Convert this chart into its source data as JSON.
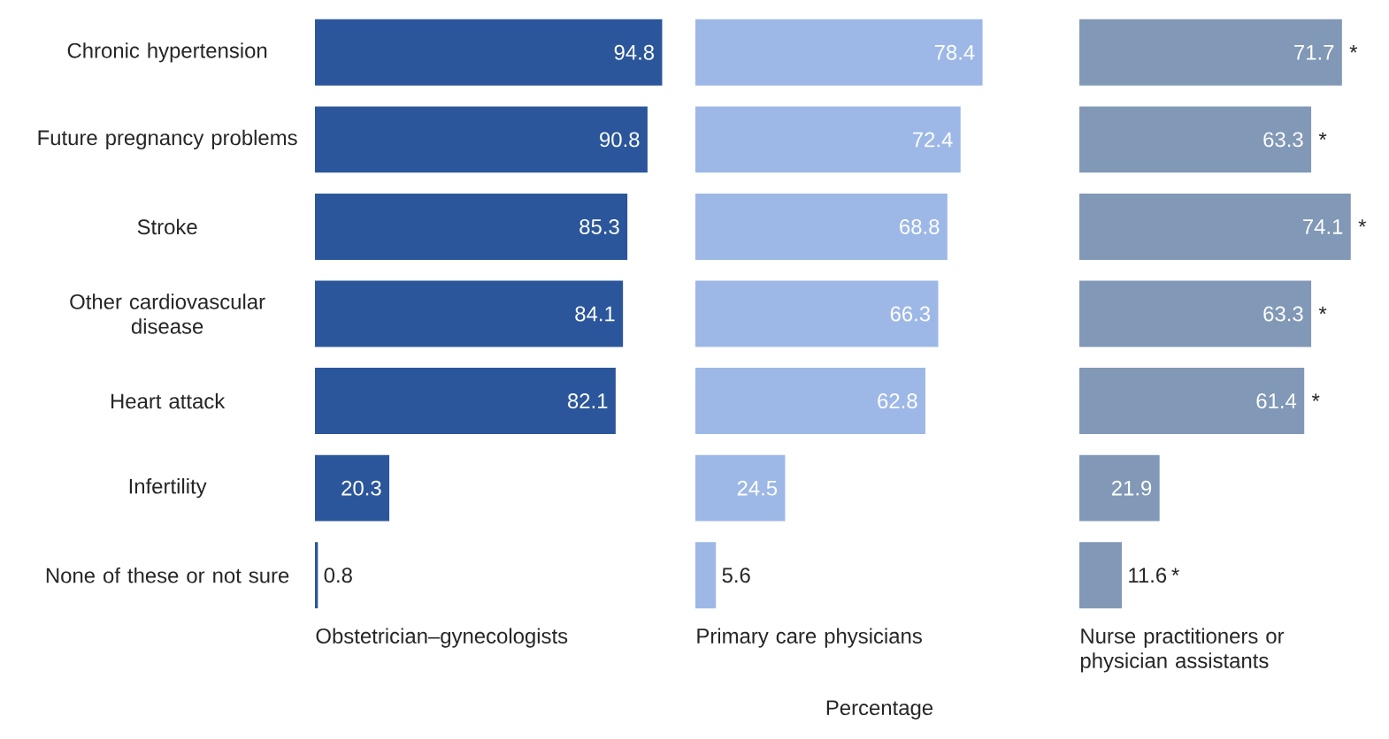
{
  "chart_data": [
    {
      "type": "bar",
      "orientation": "horizontal",
      "title": "Obstetrician–gynecologists",
      "categories": [
        "Chronic hypertension",
        "Future pregnancy problems",
        "Stroke",
        "Other cardiovascular disease",
        "Heart attack",
        "Infertility",
        "None of these or not sure"
      ],
      "values": [
        94.8,
        90.8,
        85.3,
        84.1,
        82.1,
        20.3,
        0.8
      ],
      "color": "#2b569b",
      "data_labels": true,
      "tick_labels": "y"
    },
    {
      "type": "bar",
      "orientation": "horizontal",
      "title": "Primary care physicians",
      "xlabel": "Percentage",
      "categories": [
        "Chronic hypertension",
        "Future pregnancy problems",
        "Stroke",
        "Other cardiovascular disease",
        "Heart attack",
        "Infertility",
        "None of these or not sure"
      ],
      "values": [
        78.4,
        72.4,
        68.8,
        66.3,
        62.8,
        24.5,
        5.6
      ],
      "color": "#9db8e6",
      "data_labels": true,
      "tick_labels": false
    },
    {
      "type": "bar",
      "orientation": "horizontal",
      "title": "Nurse practitioners or physician assistants",
      "categories": [
        "Chronic hypertension",
        "Future pregnancy problems",
        "Stroke",
        "Other cardiovascular disease",
        "Heart attack",
        "Infertility",
        "None of these or not sure"
      ],
      "values": [
        71.7,
        63.3,
        74.1,
        63.3,
        61.4,
        21.9,
        11.6
      ],
      "color": "#8198b6",
      "data_labels": true,
      "tick_labels": false,
      "annotations": [
        {
          "text": "*",
          "x": 71.7,
          "y": "Chronic hypertension"
        },
        {
          "text": "*",
          "x": 63.3,
          "y": "Future pregnancy problems"
        },
        {
          "text": "*",
          "x": 74.1,
          "y": "Stroke"
        },
        {
          "text": "*",
          "x": 63.3,
          "y": "Other cardiovascular disease"
        },
        {
          "text": "*",
          "x": 61.4,
          "y": "Heart attack"
        },
        {
          "text": "*",
          "x": 11.6,
          "y": "None of these or not sure"
        }
      ]
    }
  ]
}
